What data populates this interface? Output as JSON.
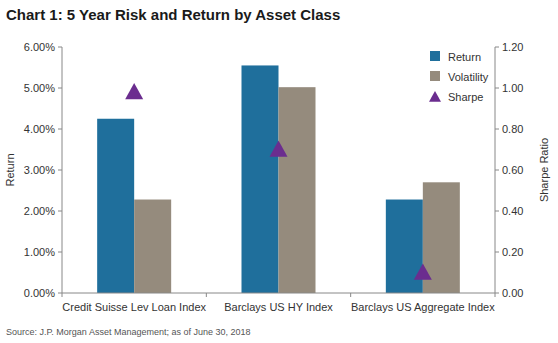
{
  "chart_data": {
    "type": "bar",
    "title": "Chart 1: 5 Year Risk and Return by Asset Class",
    "y_label": "Return",
    "y2_label": "Sharpe Ratio",
    "source": "Source: J.P. Morgan Asset Management; as of June 30, 2018",
    "categories": [
      "Credit Suisse Lev Loan Index",
      "Barclays US HY Index",
      "Barclays US Aggregate Index"
    ],
    "series": [
      {
        "name": "Return",
        "type": "bar",
        "color": "#1f6f9c",
        "values": [
          4.25,
          5.55,
          2.28
        ]
      },
      {
        "name": "Volatility",
        "type": "bar",
        "color": "#958b7d",
        "values": [
          2.28,
          5.02,
          2.7
        ]
      },
      {
        "name": "Sharpe",
        "type": "scatter",
        "marker": "triangle",
        "color": "#6b2d8f",
        "axis": "y2",
        "values": [
          0.98,
          0.7,
          0.1
        ]
      }
    ],
    "ylim": [
      0,
      6
    ],
    "yticks": [
      {
        "value": 0,
        "label": "0.00%"
      },
      {
        "value": 1,
        "label": "1.00%"
      },
      {
        "value": 2,
        "label": "2.00%"
      },
      {
        "value": 3,
        "label": "3.00%"
      },
      {
        "value": 4,
        "label": "4.00%"
      },
      {
        "value": 5,
        "label": "5.00%"
      },
      {
        "value": 6,
        "label": "6.00%"
      }
    ],
    "y2lim": [
      0,
      1.2
    ],
    "y2ticks": [
      {
        "value": 0,
        "label": "0.00"
      },
      {
        "value": 0.2,
        "label": "0.20"
      },
      {
        "value": 0.4,
        "label": "0.40"
      },
      {
        "value": 0.6,
        "label": "0.60"
      },
      {
        "value": 0.8,
        "label": "0.80"
      },
      {
        "value": 1,
        "label": "1.00"
      },
      {
        "value": 1.2,
        "label": "1.20"
      }
    ],
    "grid": false,
    "legend": "upper-right"
  }
}
